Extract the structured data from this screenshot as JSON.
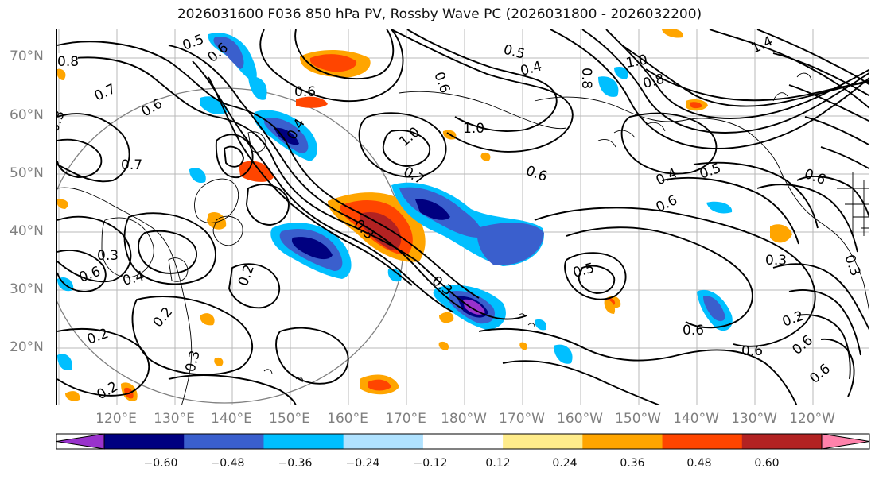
{
  "title": "2026031600 F036 850 hPa PV, Rossby Wave PC (2026031800 - 2026032200)",
  "lat_labels": [
    "70°N",
    "60°N",
    "50°N",
    "40°N",
    "30°N",
    "20°N"
  ],
  "lon_labels": [
    "120°E",
    "130°E",
    "140°E",
    "150°E",
    "160°E",
    "170°E",
    "180°W",
    "170°W",
    "160°W",
    "150°W",
    "140°W",
    "130°W",
    "120°W"
  ],
  "contour_labels": [
    "0.8",
    "0.7",
    "0.6",
    "0.4",
    "0.3",
    "0.6",
    "0.5",
    "0.3",
    "0.2",
    "0.6",
    "0.4",
    "0.2",
    "0.5",
    "0.4",
    "0.6",
    "0.8",
    "1.0",
    "0.7",
    "0.6",
    "1.0",
    "0.8",
    "1.4",
    "0.8",
    "0.4",
    "0.5",
    "0.6",
    "0.3",
    "0.5",
    "0.6",
    "0.6",
    "0.6",
    "0.2",
    "0.6",
    "0.3",
    "0.2",
    "0.2",
    "0.3",
    "0.7"
  ],
  "colorbar": {
    "colors": [
      "#9932cc",
      "#000080",
      "#3a5fcd",
      "#00bfff",
      "#b0e2ff",
      "#ffffff",
      "#ffec8b",
      "#ffa500",
      "#ff4500",
      "#b22222",
      "#ff82ab"
    ],
    "tick_labels": [
      "−0.60",
      "−0.48",
      "−0.36",
      "−0.24",
      "−0.12",
      "0.12",
      "0.24",
      "0.36",
      "0.48",
      "0.60"
    ]
  }
}
